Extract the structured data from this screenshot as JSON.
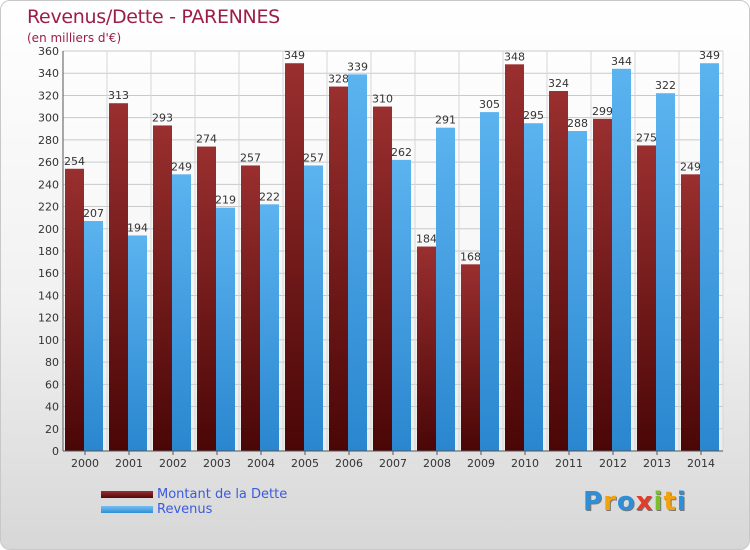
{
  "header": {
    "title": "Revenus/Dette - PARENNES",
    "subtitle": "(en milliers d'€)"
  },
  "legend": {
    "debt_label": "Montant de la Dette",
    "revenue_label": "Revenus"
  },
  "logo": {
    "text": "Proxiti",
    "letters": [
      {
        "ch": "P",
        "color": "#2e8fd8"
      },
      {
        "ch": "r",
        "color": "#f2a10f"
      },
      {
        "ch": "o",
        "color": "#2e8fd8"
      },
      {
        "ch": "x",
        "color": "#e23c2a"
      },
      {
        "ch": "i",
        "color": "#7cbf2a"
      },
      {
        "ch": "t",
        "color": "#f2a10f"
      },
      {
        "ch": "i",
        "color": "#2e8fd8"
      }
    ]
  },
  "colors": {
    "debt": "#7a1e1e",
    "revenue": "#4aa6e8",
    "title": "#9c1d4a",
    "legend_text": "#3a5bdc"
  },
  "chart_data": {
    "type": "bar",
    "title": "Revenus/Dette - PARENNES",
    "subtitle": "(en milliers d'€)",
    "categories": [
      "2000",
      "2001",
      "2002",
      "2003",
      "2004",
      "2005",
      "2006",
      "2007",
      "2008",
      "2009",
      "2010",
      "2011",
      "2012",
      "2013",
      "2014"
    ],
    "series": [
      {
        "name": "Montant de la Dette",
        "values": [
          254,
          313,
          293,
          274,
          257,
          349,
          328,
          310,
          184,
          168,
          348,
          324,
          299,
          275,
          249
        ]
      },
      {
        "name": "Revenus",
        "values": [
          207,
          194,
          249,
          219,
          222,
          257,
          339,
          262,
          291,
          305,
          295,
          288,
          344,
          322,
          349
        ]
      }
    ],
    "ylim": [
      0,
      360
    ],
    "yticks": [
      0,
      20,
      40,
      60,
      80,
      100,
      120,
      140,
      160,
      180,
      200,
      220,
      240,
      260,
      280,
      300,
      320,
      340,
      360
    ],
    "grid": true,
    "legend_position": "bottom-left"
  }
}
